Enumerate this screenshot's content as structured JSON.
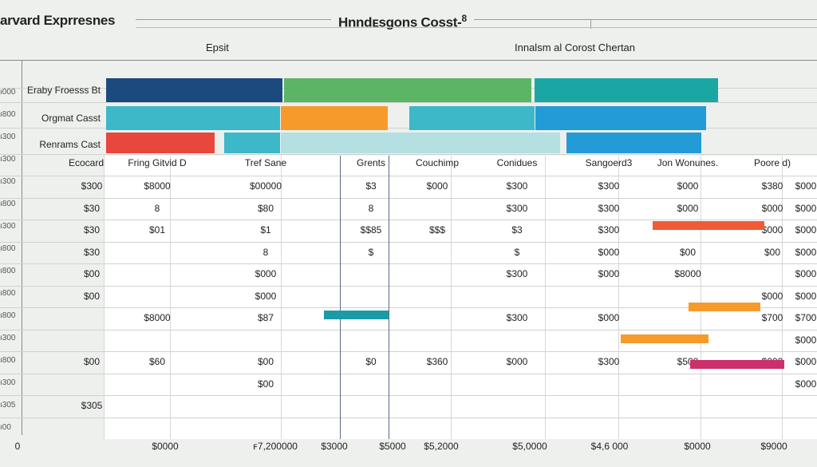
{
  "title_left": "arvard Exprresnes",
  "title_center": "Hnndᴇsgons Cosst-",
  "title_center_suffix": "8",
  "subtitle_left": "Epsit",
  "subtitle_right": "Innalsm al Corost Chertan",
  "colors": {
    "navy": "#1d4a7e",
    "green": "#5cb565",
    "teal": "#1aa7a4",
    "cyan": "#3cb8c8",
    "orange": "#f79a2c",
    "blue": "#239bd6",
    "red": "#e8473d",
    "lightcyan": "#b4e0e2",
    "red_orange": "#f05a35",
    "pink": "#cc2f6b",
    "dark_teal": "#1b9aa7"
  },
  "chart_data": {
    "type": "bar",
    "title": "Hnndᴇsgons Cosst-8",
    "top_rows": [
      {
        "label": "Eraby Froesss Bt",
        "segments": [
          {
            "color": "navy"
          },
          {
            "color": "green"
          },
          {
            "color": "teal"
          }
        ]
      },
      {
        "label": "Orgmat Casst",
        "segments": [
          {
            "color": "cyan"
          },
          {
            "color": "orange"
          },
          {
            "color": "cyan"
          },
          {
            "color": "blue"
          }
        ]
      },
      {
        "label": "Renrams Cast",
        "segments": [
          {
            "color": "red"
          },
          {
            "color": "cyan"
          },
          {
            "color": "lightcyan"
          },
          {
            "color": "blue"
          }
        ]
      }
    ],
    "columns": [
      "Ecocard",
      "Fring Gitvid D",
      "Tref Sane",
      "Grents",
      "Couchimp",
      "Conidues",
      "Sangoerd3",
      "Jon Wonunes.",
      "Poore d)"
    ],
    "row_labels": [
      "$300",
      "$30",
      "$30",
      "$30",
      "$00",
      "$00",
      "",
      "",
      "$00",
      "",
      "$305"
    ],
    "table_values": [
      [
        "$8000",
        "$00000",
        "$3",
        "$000",
        "$300",
        "$300",
        "$000",
        "$380",
        "$000"
      ],
      [
        "8",
        "$80",
        "8",
        "",
        "$300",
        "$300",
        "$000",
        "$000",
        "$000"
      ],
      [
        "$01",
        "$1",
        "$$85",
        "$$$",
        "$3",
        "$300",
        "",
        "$000",
        "$000"
      ],
      [
        "",
        "8",
        "$",
        "",
        "$",
        "$000",
        "$00",
        "$00",
        "$000"
      ],
      [
        "",
        "$000",
        "",
        "",
        "$300",
        "$000",
        "$8000",
        "",
        "$000"
      ],
      [
        "",
        "$000",
        "",
        "",
        "",
        "",
        "",
        "$000",
        "$000"
      ],
      [
        "$8000",
        "$87",
        "",
        "",
        "$300",
        "$000",
        "",
        "$700",
        "$700"
      ],
      [
        "",
        "",
        "",
        "",
        "",
        "",
        "",
        "",
        "$000"
      ],
      [
        "$60",
        "$00",
        "$0",
        "$360",
        "$000",
        "$300",
        "$508",
        "$000",
        "$000"
      ],
      [
        "",
        "$00",
        "",
        "",
        "",
        "",
        "",
        "",
        "$000"
      ],
      [
        "",
        "",
        "",
        "",
        "",
        "",
        "",
        "",
        ""
      ]
    ],
    "inline_bars": [
      {
        "row": 2,
        "color": "red_orange"
      },
      {
        "row": 5,
        "color": "orange"
      },
      {
        "row": 6,
        "color": "orange"
      },
      {
        "row": 7,
        "color": "pink"
      },
      {
        "row": 5,
        "color": "dark_teal"
      }
    ],
    "left_ticks": [
      "ı000",
      "ı800",
      "ı300",
      "ı300",
      "ı300",
      "ı800",
      "ı300",
      "ı800",
      "ı800",
      "ı800",
      "ı800",
      "ı300",
      "ı800",
      "ı300",
      "ı305",
      "ı00"
    ],
    "bottom_ticks": [
      "0",
      "$0000",
      "ꜰ7,200000",
      "$3000",
      "$5000",
      "$5,2000",
      "$5,0000",
      "$4,6 000",
      "$0000",
      "$9000"
    ]
  }
}
